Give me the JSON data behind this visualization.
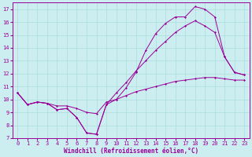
{
  "xlabel": "Windchill (Refroidissement éolien,°C)",
  "xlim": [
    -0.5,
    23.5
  ],
  "ylim": [
    7,
    17.5
  ],
  "yticks": [
    7,
    8,
    9,
    10,
    11,
    12,
    13,
    14,
    15,
    16,
    17
  ],
  "xticks": [
    0,
    1,
    2,
    3,
    4,
    5,
    6,
    7,
    8,
    9,
    10,
    11,
    12,
    13,
    14,
    15,
    16,
    17,
    18,
    19,
    20,
    21,
    22,
    23
  ],
  "background_color": "#cdeef0",
  "line_color": "#990099",
  "grid_color": "#aadddd",
  "line1_x": [
    0,
    1,
    2,
    3,
    4,
    5,
    6,
    7,
    8,
    9,
    10,
    11,
    12,
    13,
    14,
    15,
    16,
    17,
    18,
    19,
    20,
    21,
    22,
    23
  ],
  "line1_y": [
    10.5,
    9.6,
    9.8,
    9.7,
    9.2,
    9.3,
    8.6,
    7.4,
    7.3,
    9.6,
    10.0,
    10.9,
    12.1,
    13.8,
    15.1,
    15.9,
    16.4,
    16.4,
    17.2,
    17.0,
    16.4,
    13.3,
    12.1,
    11.9
  ],
  "line2_x": [
    0,
    1,
    2,
    3,
    4,
    5,
    6,
    7,
    8,
    9,
    10,
    11,
    12,
    13,
    14,
    15,
    16,
    17,
    18,
    19,
    20,
    21,
    22,
    23
  ],
  "line2_y": [
    10.5,
    9.6,
    9.8,
    9.7,
    9.2,
    9.3,
    8.6,
    7.4,
    7.3,
    9.6,
    10.5,
    11.3,
    12.2,
    13.0,
    13.8,
    14.5,
    15.2,
    15.7,
    16.1,
    15.7,
    15.2,
    13.3,
    12.1,
    11.9
  ],
  "line3_x": [
    0,
    1,
    2,
    3,
    4,
    5,
    6,
    7,
    8,
    9,
    10,
    11,
    12,
    13,
    14,
    15,
    16,
    17,
    18,
    19,
    20,
    21,
    22,
    23
  ],
  "line3_y": [
    10.5,
    9.6,
    9.8,
    9.7,
    9.5,
    9.5,
    9.3,
    9.0,
    8.9,
    9.8,
    10.0,
    10.3,
    10.6,
    10.8,
    11.0,
    11.2,
    11.4,
    11.5,
    11.6,
    11.7,
    11.7,
    11.6,
    11.5,
    11.5
  ],
  "marker": "D",
  "markersize": 1.5,
  "linewidth": 0.7,
  "tick_fontsize": 5,
  "xlabel_fontsize": 5.5
}
